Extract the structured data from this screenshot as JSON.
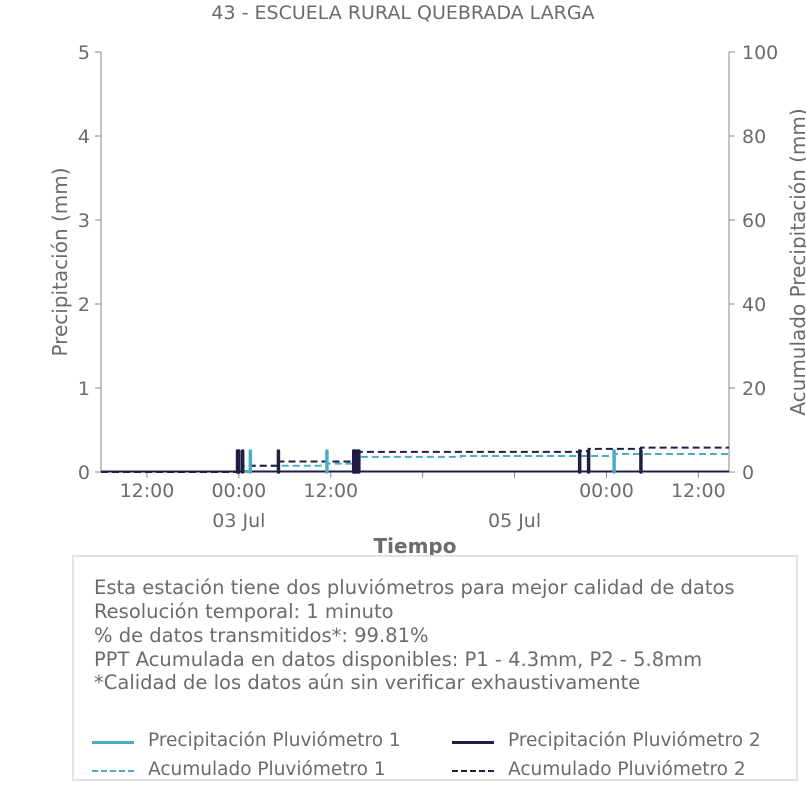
{
  "title": "43 - ESCUELA RURAL QUEBRADA LARGA",
  "chart_data": {
    "type": "bar",
    "title": "43 - ESCUELA RURAL QUEBRADA LARGA",
    "xlabel": "Tiempo",
    "ylabel": "Precipitación (mm)",
    "ylabel_right": "Acumulado Precipitación (mm)",
    "x_range": [
      "2024-07-02 06:00",
      "2024-07-05 16:00"
    ],
    "ylim": [
      0,
      5
    ],
    "ylim_right": [
      0,
      100
    ],
    "yticks": [
      "0",
      "1",
      "2",
      "3",
      "4",
      "5"
    ],
    "yticks_right": [
      "0",
      "20",
      "40",
      "60",
      "80",
      "100"
    ],
    "xticks": [
      {
        "t": "2024-07-02 12:00",
        "label": "12:00",
        "sublabel": ""
      },
      {
        "t": "2024-07-03 00:00",
        "label": "00:00",
        "sublabel": "03 Jul"
      },
      {
        "t": "2024-07-03 12:00",
        "label": "12:00",
        "sublabel": ""
      },
      {
        "t": "2024-07-04 00:00",
        "label": "",
        "sublabel": ""
      },
      {
        "t": "2024-07-04 12:00",
        "label": "",
        "sublabel": "05 Jul"
      },
      {
        "t": "2024-07-05 00:00",
        "label": "00:00",
        "sublabel": ""
      },
      {
        "t": "2024-07-05 12:00",
        "label": "12:00",
        "sublabel": ""
      }
    ],
    "grid": false,
    "series": [
      {
        "name": "Precipitación Pluviómetro 1",
        "kind": "bars",
        "color": "#4bacc6",
        "points": [
          {
            "t": "2024-07-02 23:50",
            "v": 0.25
          },
          {
            "t": "2024-07-03 01:30",
            "v": 0.25
          },
          {
            "t": "2024-07-03 11:30",
            "v": 0.25
          },
          {
            "t": "2024-07-03 15:00",
            "v": 0.25
          },
          {
            "t": "2024-07-03 15:30",
            "v": 0.25
          },
          {
            "t": "2024-07-05 01:00",
            "v": 0.25
          }
        ]
      },
      {
        "name": "Precipitación Pluviómetro 2",
        "kind": "bars",
        "color": "#1f1f45",
        "points": [
          {
            "t": "2024-07-02 23:50",
            "v": 0.25
          },
          {
            "t": "2024-07-03 00:00",
            "v": 0.25
          },
          {
            "t": "2024-07-03 00:30",
            "v": 0.25
          },
          {
            "t": "2024-07-03 05:10",
            "v": 0.25
          },
          {
            "t": "2024-07-03 15:00",
            "v": 0.25
          },
          {
            "t": "2024-07-03 15:10",
            "v": 0.25
          },
          {
            "t": "2024-07-03 15:20",
            "v": 0.25
          },
          {
            "t": "2024-07-03 15:40",
            "v": 0.25
          },
          {
            "t": "2024-07-04 20:30",
            "v": 0.25
          },
          {
            "t": "2024-07-04 21:40",
            "v": 0.25
          },
          {
            "t": "2024-07-05 04:30",
            "v": 0.25
          }
        ]
      },
      {
        "name": "Acumulado Pluviómetro 1",
        "kind": "step",
        "color": "#4bacc6",
        "points": [
          {
            "t": "2024-07-02 06:00",
            "v": 0
          },
          {
            "t": "2024-07-02 23:50",
            "v": 0.25
          },
          {
            "t": "2024-07-03 01:30",
            "v": 1.5
          },
          {
            "t": "2024-07-03 11:30",
            "v": 2.0
          },
          {
            "t": "2024-07-03 15:00",
            "v": 3.6
          },
          {
            "t": "2024-07-04 05:00",
            "v": 3.8
          },
          {
            "t": "2024-07-05 01:00",
            "v": 4.3
          },
          {
            "t": "2024-07-05 16:00",
            "v": 4.3
          }
        ]
      },
      {
        "name": "Acumulado Pluviómetro 2",
        "kind": "step",
        "color": "#1f1f45",
        "points": [
          {
            "t": "2024-07-02 06:00",
            "v": 0
          },
          {
            "t": "2024-07-02 23:50",
            "v": 0.5
          },
          {
            "t": "2024-07-03 00:30",
            "v": 1.5
          },
          {
            "t": "2024-07-03 05:10",
            "v": 2.5
          },
          {
            "t": "2024-07-03 15:00",
            "v": 4.8
          },
          {
            "t": "2024-07-04 20:30",
            "v": 5.0
          },
          {
            "t": "2024-07-04 21:40",
            "v": 5.5
          },
          {
            "t": "2024-07-05 04:30",
            "v": 5.8
          },
          {
            "t": "2024-07-05 16:00",
            "v": 5.8
          }
        ]
      }
    ]
  },
  "info": {
    "lines": [
      "Esta estación tiene dos pluviómetros para mejor calidad de datos",
      "Resolución temporal: 1 minuto",
      "% de datos transmitidos*: 99.81%",
      "PPT Acumulada en datos disponibles: P1 - 4.3mm, P2 - 5.8mm",
      "*Calidad de los datos aún sin verificar exhaustivamente"
    ]
  },
  "legend": [
    {
      "label": "Precipitación Pluviómetro 1",
      "color": "#4bacc6",
      "style": "solid"
    },
    {
      "label": "Precipitación Pluviómetro 2",
      "color": "#1f1f45",
      "style": "solid"
    },
    {
      "label": "Acumulado Pluviómetro 1",
      "color": "#4bacc6",
      "style": "dashed"
    },
    {
      "label": "Acumulado Pluviómetro 2",
      "color": "#1f1f45",
      "style": "dashed"
    }
  ]
}
